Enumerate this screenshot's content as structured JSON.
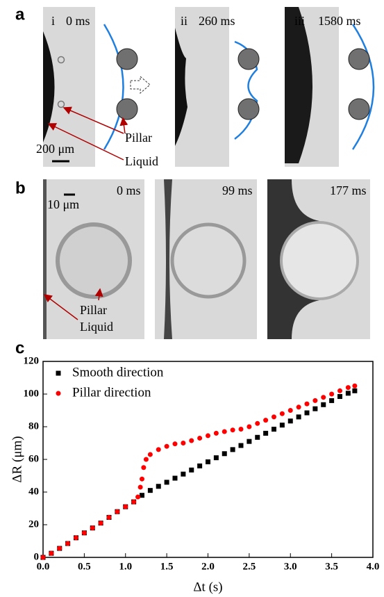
{
  "panel_a": {
    "label": "a",
    "frames": [
      {
        "numeral": "i",
        "time": "0 ms"
      },
      {
        "numeral": "ii",
        "time": "260 ms"
      },
      {
        "numeral": "iii",
        "time": "1580 ms"
      }
    ],
    "pillar": "Pillar",
    "liquid": "Liquid",
    "scale": "200 μm"
  },
  "panel_b": {
    "label": "b",
    "times": [
      "0 ms",
      "99 ms",
      "177 ms"
    ],
    "scale": "10 μm",
    "pillar": "Pillar",
    "liquid": "Liquid"
  },
  "panel_c": {
    "label": "c"
  },
  "chart_data": {
    "type": "scatter",
    "xlabel": "Δt (s)",
    "ylabel": "ΔR (μm)",
    "xlim": [
      0,
      4.0
    ],
    "ylim": [
      0,
      120
    ],
    "xticks": [
      {
        "value": 0,
        "label": "0.0"
      },
      0.5,
      {
        "value": 1,
        "label": "1.0"
      },
      1.5,
      {
        "value": 2,
        "label": "2.0"
      },
      2.5,
      {
        "value": 3,
        "label": "3.0"
      },
      3.5,
      {
        "value": 4,
        "label": "4.0"
      }
    ],
    "yticks": [
      0,
      20,
      40,
      60,
      80,
      100,
      120
    ],
    "legend": "top-left",
    "series": [
      {
        "name": "Smooth direction",
        "color": "#000000",
        "marker": "square",
        "x": [
          0,
          0.1,
          0.2,
          0.3,
          0.4,
          0.5,
          0.6,
          0.7,
          0.8,
          0.9,
          1.0,
          1.1,
          1.2,
          1.3,
          1.4,
          1.5,
          1.6,
          1.7,
          1.8,
          1.9,
          2.0,
          2.1,
          2.2,
          2.3,
          2.4,
          2.5,
          2.6,
          2.7,
          2.8,
          2.9,
          3.0,
          3.1,
          3.2,
          3.3,
          3.4,
          3.5,
          3.6,
          3.7,
          3.78
        ],
        "values": [
          0,
          2.5,
          5.5,
          8.5,
          12,
          15,
          18,
          21,
          24.5,
          28,
          31,
          34,
          38,
          41,
          43.5,
          46,
          48.5,
          51,
          53.5,
          56,
          58.5,
          61,
          63.5,
          66,
          68.5,
          71,
          73.5,
          76,
          78.5,
          81,
          83.5,
          86,
          88.5,
          91,
          93.5,
          96,
          98.5,
          100.5,
          102
        ]
      },
      {
        "name": "Pillar direction",
        "color": "#ff0000",
        "marker": "circle",
        "x": [
          0,
          0.1,
          0.2,
          0.3,
          0.4,
          0.5,
          0.6,
          0.7,
          0.8,
          0.9,
          1.0,
          1.1,
          1.15,
          1.18,
          1.2,
          1.22,
          1.25,
          1.3,
          1.4,
          1.5,
          1.6,
          1.7,
          1.8,
          1.9,
          2.0,
          2.1,
          2.2,
          2.3,
          2.4,
          2.5,
          2.6,
          2.7,
          2.8,
          2.9,
          3.0,
          3.1,
          3.2,
          3.3,
          3.4,
          3.5,
          3.6,
          3.7,
          3.78
        ],
        "values": [
          0,
          2.5,
          5.5,
          8.5,
          12,
          15,
          18,
          21,
          24.5,
          28,
          31,
          34,
          37,
          43,
          48,
          55,
          60,
          63,
          66,
          68,
          69.5,
          70,
          71.5,
          73,
          74.5,
          76,
          77,
          78,
          78.5,
          80,
          82,
          84,
          86,
          88,
          90,
          92,
          94,
          96,
          98,
          100,
          102,
          104,
          105
        ]
      }
    ]
  }
}
